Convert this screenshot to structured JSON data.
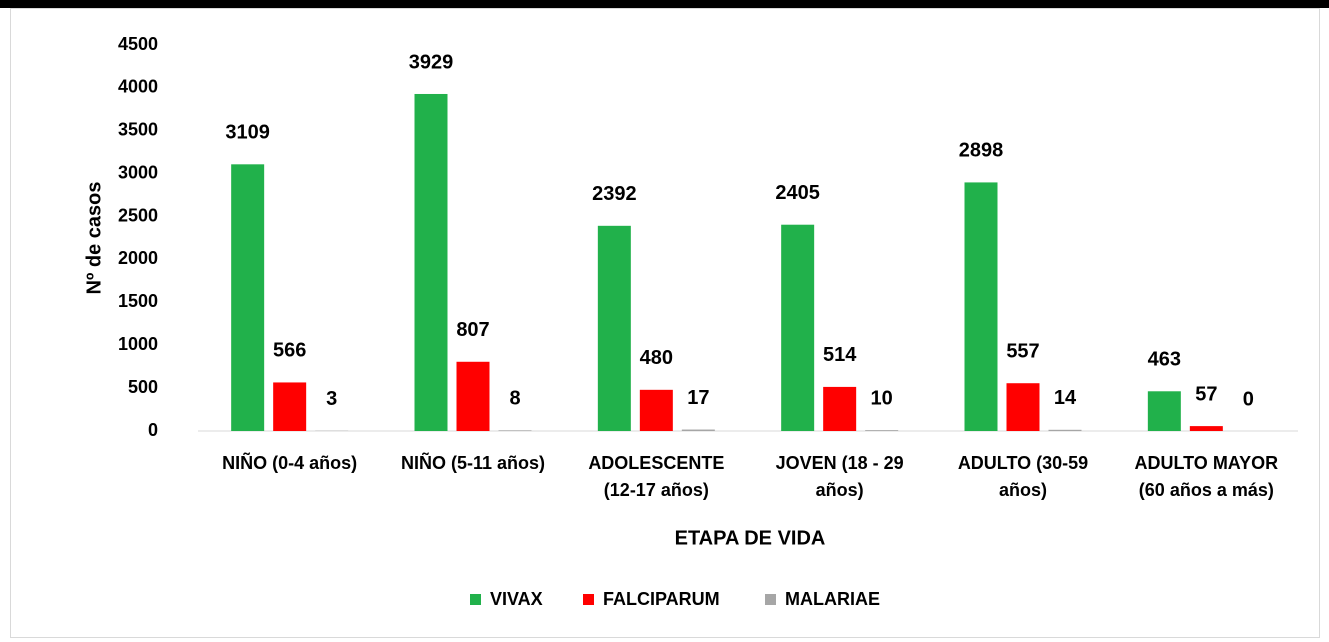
{
  "chart_data": {
    "type": "bar",
    "x_label": "ETAPA DE VIDA",
    "y_label": "Nº de casos",
    "categories": [
      [
        "NIÑO (0-4 años)"
      ],
      [
        "NIÑO (5-11 años)"
      ],
      [
        "ADOLESCENTE",
        "(12-17 años)"
      ],
      [
        "JOVEN (18 - 29",
        "años)"
      ],
      [
        "ADULTO (30-59",
        "años)"
      ],
      [
        "ADULTO MAYOR",
        "(60 años a más)"
      ]
    ],
    "series": [
      {
        "name": "VIVAX",
        "color": "#21b14b",
        "values": [
          3109,
          3929,
          2392,
          2405,
          2898,
          463
        ]
      },
      {
        "name": "FALCIPARUM",
        "color": "#ff0000",
        "values": [
          566,
          807,
          480,
          514,
          557,
          57
        ]
      },
      {
        "name": "MALARIAE",
        "color": "#a6a6a6",
        "values": [
          3,
          8,
          17,
          10,
          14,
          0
        ]
      }
    ],
    "ylim": [
      0,
      4500
    ],
    "yticks": [
      0,
      500,
      1000,
      1500,
      2000,
      2500,
      3000,
      3500,
      4000,
      4500
    ],
    "grid": false,
    "legend": "bottom"
  }
}
